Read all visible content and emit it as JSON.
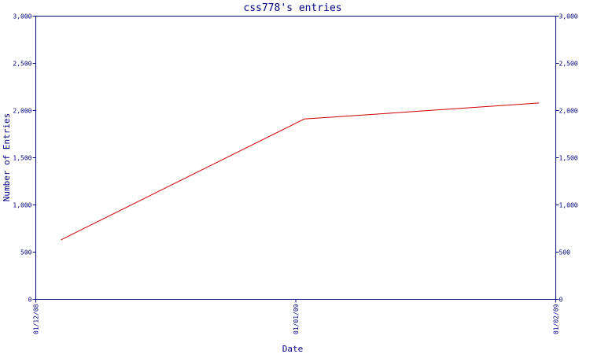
{
  "chart_data": {
    "type": "line",
    "title": "css778's entries",
    "xlabel": "Date",
    "ylabel": "Number of Entries",
    "x_tick_labels": [
      "01/12/08",
      "01/01/09",
      "01/02/09"
    ],
    "x_ticks": [
      "2008-12-01",
      "2009-01-01",
      "2009-02-01"
    ],
    "xlim": [
      "2008-12-01",
      "2009-02-01"
    ],
    "ylim": [
      0,
      3000
    ],
    "y_ticks": [
      0,
      500,
      1000,
      1500,
      2000,
      2500,
      3000
    ],
    "y_tick_labels": [
      "0",
      "500",
      "1,000",
      "1,500",
      "2,000",
      "2,500",
      "3,000"
    ],
    "grid": false,
    "colors": {
      "axis": "#000080",
      "series": "#cc0000",
      "text": "#000080"
    },
    "series": [
      {
        "x": [
          "2008-12-04",
          "2009-01-02",
          "2009-01-30"
        ],
        "values": [
          630,
          1910,
          2080
        ]
      }
    ]
  }
}
